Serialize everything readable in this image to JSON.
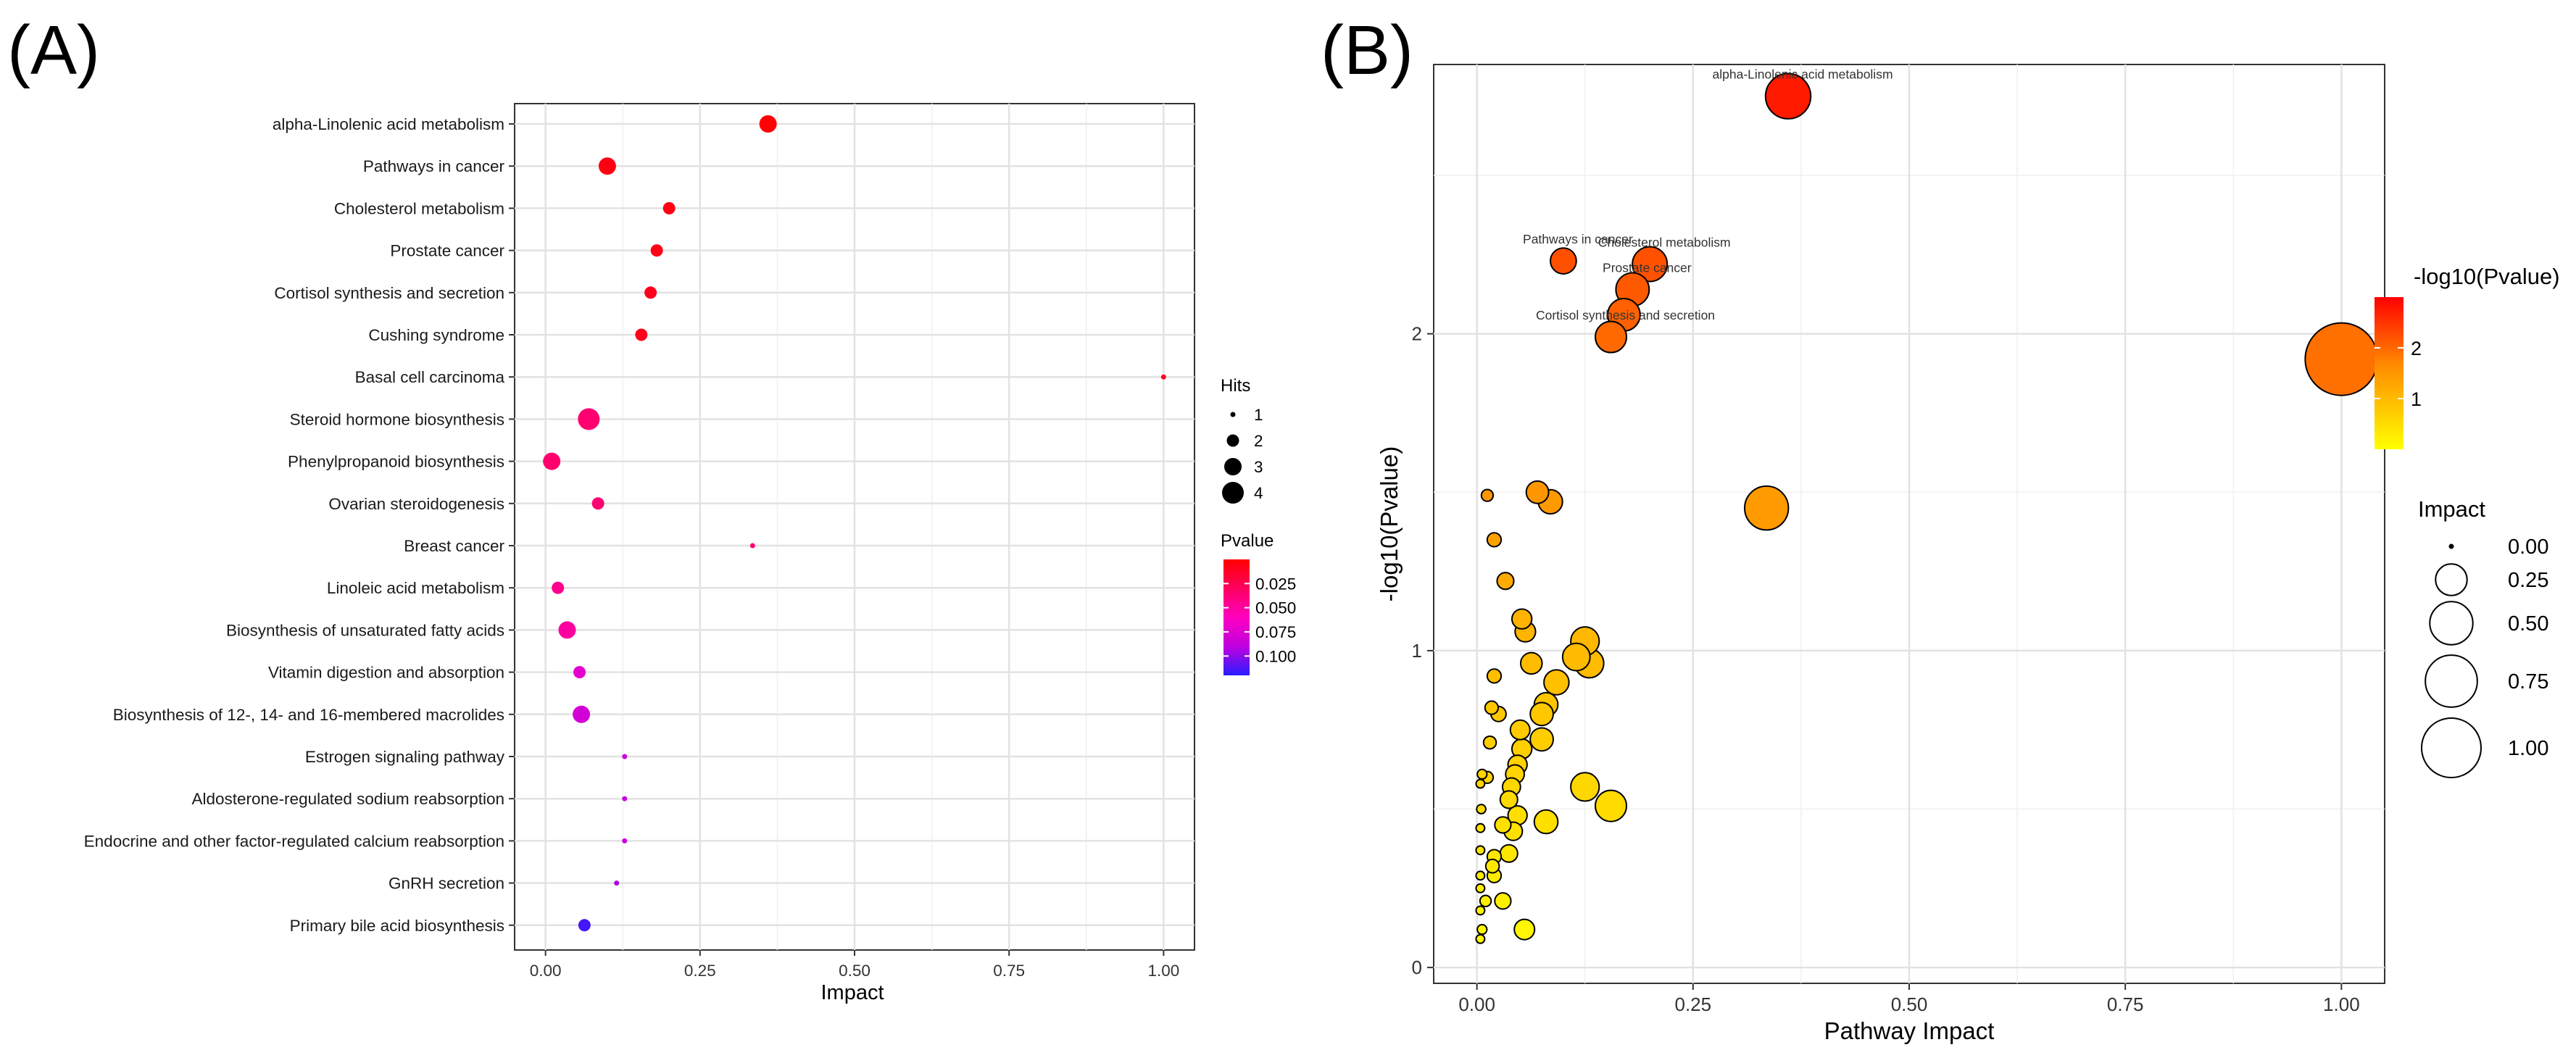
{
  "chart_data": [
    {
      "panel_label": "(A)",
      "type": "scatter",
      "xlabel": "Impact",
      "ylabel": "",
      "xlim": [
        -0.05,
        1.05
      ],
      "x_ticks": [
        0.0,
        0.25,
        0.5,
        0.75,
        1.0
      ],
      "x_tick_labels": [
        "0.00",
        "0.25",
        "0.50",
        "0.75",
        "1.00"
      ],
      "grid": true,
      "categories": [
        "alpha-Linolenic acid metabolism",
        "Pathways in cancer",
        "Cholesterol metabolism",
        "Prostate cancer",
        "Cortisol synthesis and secretion",
        "Cushing syndrome",
        "Basal cell carcinoma",
        "Steroid hormone biosynthesis",
        "Phenylpropanoid biosynthesis",
        "Ovarian steroidogenesis",
        "Breast cancer",
        "Linoleic acid metabolism",
        "Biosynthesis of unsaturated fatty acids",
        "Vitamin digestion and absorption",
        "Biosynthesis of 12-, 14- and 16-membered macrolides",
        "Estrogen signaling pathway",
        "Aldosterone-regulated sodium reabsorption",
        "Endocrine and other factor-regulated calcium reabsorption",
        "GnRH secretion",
        "Primary bile acid biosynthesis"
      ],
      "impact": [
        0.36,
        0.1,
        0.2,
        0.18,
        0.17,
        0.155,
        1.0,
        0.07,
        0.01,
        0.085,
        0.335,
        0.02,
        0.035,
        0.055,
        0.058,
        0.128,
        0.128,
        0.128,
        0.115,
        0.063
      ],
      "hits": [
        3,
        3,
        2,
        2,
        2,
        2,
        1,
        4,
        3,
        2,
        1,
        2,
        3,
        2,
        3,
        1,
        1,
        1,
        1,
        2
      ],
      "pvalue": [
        0.0015,
        0.006,
        0.006,
        0.007,
        0.009,
        0.009,
        0.012,
        0.035,
        0.034,
        0.035,
        0.036,
        0.043,
        0.05,
        0.073,
        0.081,
        0.085,
        0.086,
        0.087,
        0.093,
        0.115
      ],
      "legend_size": {
        "title": "Hits",
        "values": [
          1,
          2,
          3,
          4
        ],
        "labels": [
          "1",
          "2",
          "3",
          "4"
        ]
      },
      "legend_color": {
        "title": "Pvalue",
        "range": [
          0.0,
          0.12
        ],
        "ticks": [
          0.025,
          0.05,
          0.075,
          0.1
        ],
        "tick_labels": [
          "0.025",
          "0.050",
          "0.075",
          "0.100"
        ],
        "low_color": "#ff0000",
        "high_color": "#0000ff"
      }
    },
    {
      "panel_label": "(B)",
      "type": "scatter",
      "xlabel": "Pathway Impact",
      "ylabel": "-log10(Pvalue)",
      "xlim": [
        -0.05,
        1.05
      ],
      "ylim": [
        -0.05,
        2.85
      ],
      "x_ticks": [
        0.0,
        0.25,
        0.5,
        0.75,
        1.0
      ],
      "x_tick_labels": [
        "0.00",
        "0.25",
        "0.50",
        "0.75",
        "1.00"
      ],
      "y_ticks": [
        0,
        1,
        2
      ],
      "y_tick_labels": [
        "0",
        "1",
        "2"
      ],
      "grid": true,
      "points": [
        {
          "x": 0.36,
          "y": 2.75,
          "label": "alpha-Linolenic acid metabolism"
        },
        {
          "x": 0.1,
          "y": 2.23,
          "label": "Pathways in cancer"
        },
        {
          "x": 0.2,
          "y": 2.22,
          "label": "Cholesterol metabolism"
        },
        {
          "x": 0.18,
          "y": 2.14,
          "label": "Prostate cancer"
        },
        {
          "x": 0.17,
          "y": 2.06,
          "label": ""
        },
        {
          "x": 0.155,
          "y": 1.99,
          "label": "Cortisol synthesis and secretion"
        },
        {
          "x": 1.0,
          "y": 1.92,
          "label": ""
        },
        {
          "x": 0.335,
          "y": 1.45,
          "label": ""
        },
        {
          "x": 0.07,
          "y": 1.5,
          "label": ""
        },
        {
          "x": 0.085,
          "y": 1.47,
          "label": ""
        },
        {
          "x": 0.012,
          "y": 1.49,
          "label": ""
        },
        {
          "x": 0.02,
          "y": 1.35,
          "label": ""
        },
        {
          "x": 0.033,
          "y": 1.22,
          "label": ""
        },
        {
          "x": 0.052,
          "y": 1.1,
          "label": ""
        },
        {
          "x": 0.056,
          "y": 1.06,
          "label": ""
        },
        {
          "x": 0.125,
          "y": 1.03,
          "label": ""
        },
        {
          "x": 0.115,
          "y": 0.98,
          "label": ""
        },
        {
          "x": 0.13,
          "y": 0.96,
          "label": ""
        },
        {
          "x": 0.063,
          "y": 0.96,
          "label": ""
        },
        {
          "x": 0.02,
          "y": 0.92,
          "label": ""
        },
        {
          "x": 0.092,
          "y": 0.9,
          "label": ""
        },
        {
          "x": 0.08,
          "y": 0.83,
          "label": ""
        },
        {
          "x": 0.075,
          "y": 0.8,
          "label": ""
        },
        {
          "x": 0.017,
          "y": 0.82,
          "label": ""
        },
        {
          "x": 0.025,
          "y": 0.8,
          "label": ""
        },
        {
          "x": 0.05,
          "y": 0.75,
          "label": ""
        },
        {
          "x": 0.075,
          "y": 0.72,
          "label": ""
        },
        {
          "x": 0.015,
          "y": 0.71,
          "label": ""
        },
        {
          "x": 0.052,
          "y": 0.69,
          "label": ""
        },
        {
          "x": 0.047,
          "y": 0.64,
          "label": ""
        },
        {
          "x": 0.044,
          "y": 0.61,
          "label": ""
        },
        {
          "x": 0.04,
          "y": 0.57,
          "label": ""
        },
        {
          "x": 0.037,
          "y": 0.53,
          "label": ""
        },
        {
          "x": 0.125,
          "y": 0.57,
          "label": ""
        },
        {
          "x": 0.155,
          "y": 0.51,
          "label": ""
        },
        {
          "x": 0.012,
          "y": 0.6,
          "label": ""
        },
        {
          "x": 0.006,
          "y": 0.61,
          "label": ""
        },
        {
          "x": 0.004,
          "y": 0.58,
          "label": ""
        },
        {
          "x": 0.047,
          "y": 0.48,
          "label": ""
        },
        {
          "x": 0.08,
          "y": 0.46,
          "label": ""
        },
        {
          "x": 0.03,
          "y": 0.45,
          "label": ""
        },
        {
          "x": 0.042,
          "y": 0.43,
          "label": ""
        },
        {
          "x": 0.005,
          "y": 0.5,
          "label": ""
        },
        {
          "x": 0.004,
          "y": 0.44,
          "label": ""
        },
        {
          "x": 0.004,
          "y": 0.37,
          "label": ""
        },
        {
          "x": 0.037,
          "y": 0.36,
          "label": ""
        },
        {
          "x": 0.02,
          "y": 0.35,
          "label": ""
        },
        {
          "x": 0.018,
          "y": 0.32,
          "label": ""
        },
        {
          "x": 0.02,
          "y": 0.29,
          "label": ""
        },
        {
          "x": 0.004,
          "y": 0.29,
          "label": ""
        },
        {
          "x": 0.004,
          "y": 0.25,
          "label": ""
        },
        {
          "x": 0.01,
          "y": 0.21,
          "label": ""
        },
        {
          "x": 0.03,
          "y": 0.21,
          "label": ""
        },
        {
          "x": 0.004,
          "y": 0.18,
          "label": ""
        },
        {
          "x": 0.006,
          "y": 0.12,
          "label": ""
        },
        {
          "x": 0.055,
          "y": 0.12,
          "label": ""
        },
        {
          "x": 0.004,
          "y": 0.09,
          "label": ""
        }
      ],
      "legend_color": {
        "title": "-log10(Pvalue)",
        "range": [
          0.0,
          3.0
        ],
        "ticks": [
          1,
          2
        ],
        "tick_labels": [
          "1",
          "2"
        ],
        "low_color": "#ffff00",
        "mid_color": "#ff8c00",
        "high_color": "#ff0000"
      },
      "legend_size": {
        "title": "Impact",
        "values": [
          0.0,
          0.25,
          0.5,
          0.75,
          1.0
        ],
        "labels": [
          "0.00",
          "0.25",
          "0.50",
          "0.75",
          "1.00"
        ]
      }
    }
  ]
}
